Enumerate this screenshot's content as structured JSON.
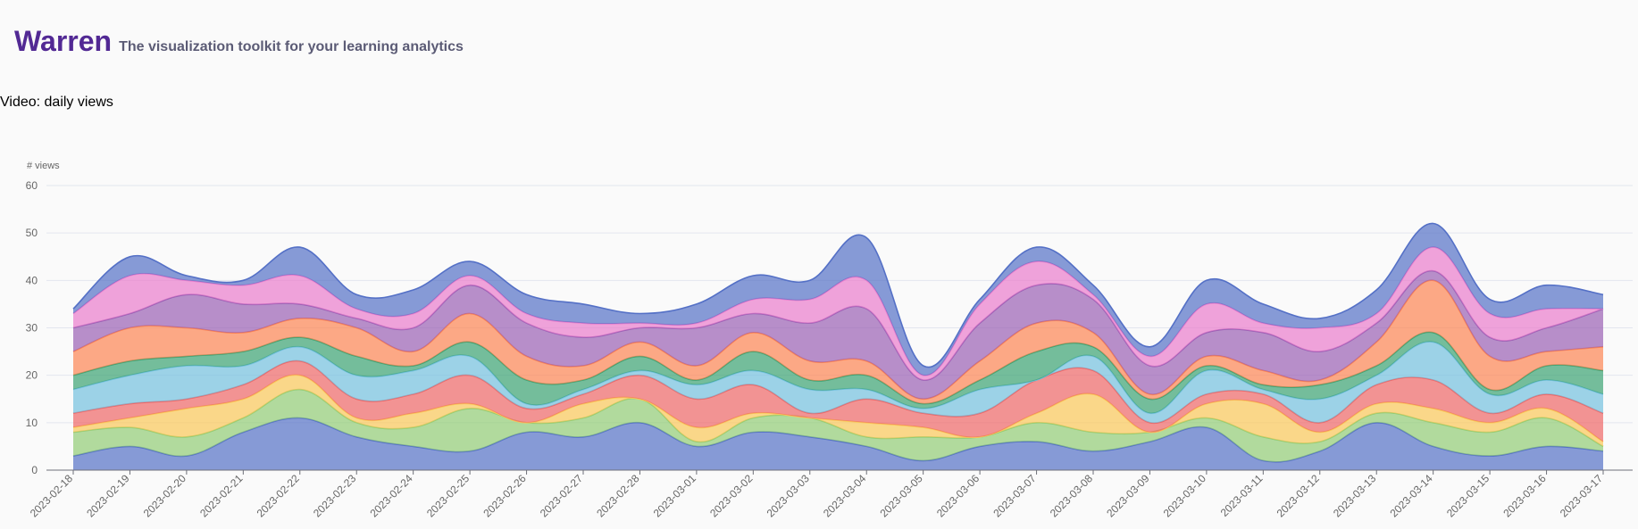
{
  "header": {
    "title": "Warren",
    "tagline": "The visualization toolkit for your learning analytics"
  },
  "chart_title": "Video: daily views",
  "chart_data": {
    "type": "area",
    "stacked": true,
    "ylabel": "# views",
    "ylim": [
      0,
      60
    ],
    "yticks": [
      0,
      10,
      20,
      30,
      40,
      50,
      60
    ],
    "grid": true,
    "x": [
      "2023-02-18",
      "2023-02-19",
      "2023-02-20",
      "2023-02-21",
      "2023-02-22",
      "2023-02-23",
      "2023-02-24",
      "2023-02-25",
      "2023-02-26",
      "2023-02-27",
      "2023-02-28",
      "2023-03-01",
      "2023-03-02",
      "2023-03-03",
      "2023-03-04",
      "2023-03-05",
      "2023-03-06",
      "2023-03-07",
      "2023-03-08",
      "2023-03-09",
      "2023-03-10",
      "2023-03-11",
      "2023-03-12",
      "2023-03-13",
      "2023-03-14",
      "2023-03-15",
      "2023-03-16",
      "2023-03-17"
    ],
    "series": [
      {
        "color": "#5470c6",
        "values": [
          3,
          5,
          3,
          8,
          11,
          7,
          5,
          4,
          8,
          7,
          10,
          5,
          8,
          7,
          5,
          2,
          5,
          6,
          4,
          6,
          9,
          2,
          4,
          10,
          5,
          3,
          5,
          4
        ]
      },
      {
        "color": "#91cc75",
        "values": [
          5,
          4,
          4,
          3,
          6,
          3,
          4,
          9,
          2,
          4,
          5,
          1,
          3,
          4,
          2,
          5,
          2,
          4,
          4,
          2,
          2,
          5,
          2,
          2,
          5,
          5,
          6,
          1
        ]
      },
      {
        "color": "#fac858",
        "values": [
          1,
          2,
          6,
          4,
          3,
          1,
          3,
          1,
          0,
          3,
          0,
          3,
          1,
          0,
          3,
          2,
          0,
          2,
          8,
          0,
          3,
          7,
          2,
          2,
          3,
          2,
          2,
          1
        ]
      },
      {
        "color": "#ee6666",
        "values": [
          3,
          3,
          2,
          3,
          3,
          4,
          4,
          6,
          3,
          2,
          5,
          6,
          6,
          1,
          5,
          3,
          5,
          7,
          5,
          2,
          2,
          2,
          2,
          4,
          6,
          2,
          3,
          6
        ]
      },
      {
        "color": "#73c0de",
        "values": [
          5,
          6,
          7,
          4,
          3,
          5,
          5,
          4,
          1,
          1,
          1,
          3,
          3,
          5,
          2,
          1,
          5,
          0,
          3,
          2,
          5,
          1,
          5,
          2,
          8,
          4,
          3,
          4
        ]
      },
      {
        "color": "#3ba272",
        "values": [
          3,
          3,
          2,
          3,
          2,
          4,
          1,
          3,
          5,
          2,
          3,
          1,
          4,
          2,
          3,
          1,
          2,
          6,
          2,
          3,
          1,
          1,
          3,
          2,
          2,
          1,
          3,
          5
        ]
      },
      {
        "color": "#fc8452",
        "values": [
          5,
          7,
          6,
          4,
          4,
          6,
          3,
          6,
          5,
          3,
          3,
          3,
          4,
          4,
          3,
          1,
          4,
          6,
          3,
          1,
          2,
          3,
          1,
          5,
          11,
          7,
          3,
          5
        ]
      },
      {
        "color": "#9a60b4",
        "values": [
          5,
          3,
          7,
          6,
          3,
          2,
          5,
          6,
          7,
          6,
          3,
          8,
          4,
          8,
          11,
          4,
          8,
          8,
          7,
          6,
          5,
          8,
          6,
          4,
          2,
          4,
          5,
          8
        ]
      },
      {
        "color": "#ea7ccc",
        "values": [
          3,
          8,
          3,
          4,
          6,
          2,
          3,
          2,
          2,
          3,
          1,
          1,
          3,
          5,
          6,
          1,
          4,
          5,
          1,
          2,
          6,
          2,
          5,
          2,
          5,
          5,
          4,
          0
        ]
      },
      {
        "color": "#5470c6",
        "values": [
          1,
          4,
          1,
          1,
          6,
          3,
          5,
          3,
          4,
          4,
          2,
          4,
          5,
          4,
          9,
          2,
          1,
          3,
          2,
          2,
          5,
          4,
          2,
          5,
          5,
          3,
          5,
          3
        ]
      }
    ]
  }
}
